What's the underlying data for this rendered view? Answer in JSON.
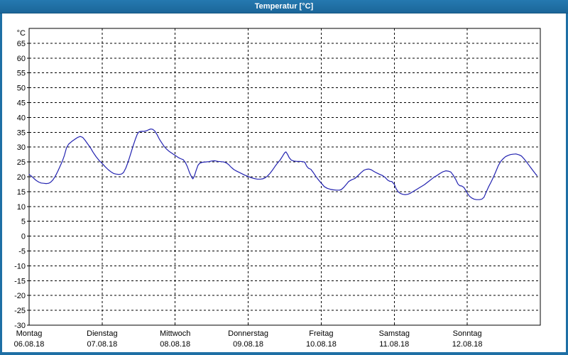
{
  "window": {
    "title": "Temperatur [°C]",
    "title_bar_color": "#1e6fa5",
    "frame_color": "#1e6fa5",
    "background_color": "#ffffff"
  },
  "chart_data": {
    "type": "line",
    "title": "Temperatur [°C]",
    "ylabel": "°C",
    "ylim": [
      -30,
      70
    ],
    "y_tick_step": 5,
    "y_ticks": [
      65,
      60,
      55,
      50,
      45,
      40,
      35,
      30,
      25,
      20,
      15,
      10,
      5,
      0,
      -5,
      -10,
      -15,
      -20,
      -25,
      -30
    ],
    "x_range_hours": [
      0,
      168
    ],
    "x_days": [
      {
        "name": "Montag",
        "date": "06.08.18"
      },
      {
        "name": "Dienstag",
        "date": "07.08.18"
      },
      {
        "name": "Mittwoch",
        "date": "08.08.18"
      },
      {
        "name": "Donnerstag",
        "date": "09.08.18"
      },
      {
        "name": "Freitag",
        "date": "10.08.18"
      },
      {
        "name": "Samstag",
        "date": "11.08.18"
      },
      {
        "name": "Sonntag",
        "date": "12.08.18"
      }
    ],
    "grid": "dashed",
    "legend": "none",
    "axis_color": "#000000",
    "series": [
      {
        "name": "Temperatur",
        "color": "#2222b0",
        "points": [
          [
            0,
            20.8
          ],
          [
            0.8,
            20.2
          ],
          [
            1.6,
            19.4
          ],
          [
            2.4,
            18.7
          ],
          [
            3.2,
            18.2
          ],
          [
            4,
            17.9
          ],
          [
            4.8,
            17.8
          ],
          [
            5.6,
            17.7
          ],
          [
            6.4,
            17.8
          ],
          [
            7,
            18.1
          ],
          [
            7.8,
            18.9
          ],
          [
            8.6,
            20.2
          ],
          [
            9.4,
            21.8
          ],
          [
            10.2,
            23.6
          ],
          [
            10.9,
            25.2
          ],
          [
            11.6,
            27.2
          ],
          [
            12.3,
            29.8
          ],
          [
            13,
            31
          ],
          [
            14,
            31.9
          ],
          [
            15,
            32.6
          ],
          [
            16,
            33.3
          ],
          [
            16.8,
            33.6
          ],
          [
            17.6,
            33.3
          ],
          [
            18.4,
            32.3
          ],
          [
            19.3,
            31
          ],
          [
            20.1,
            29.9
          ],
          [
            21,
            28.3
          ],
          [
            22,
            26.8
          ],
          [
            23,
            25.5
          ],
          [
            24,
            24.5
          ],
          [
            25,
            23.4
          ],
          [
            26,
            22.4
          ],
          [
            27,
            21.6
          ],
          [
            27.8,
            21.1
          ],
          [
            28.6,
            20.9
          ],
          [
            29.5,
            20.8
          ],
          [
            30.3,
            20.9
          ],
          [
            31,
            21.4
          ],
          [
            31.8,
            23
          ],
          [
            32.6,
            25.2
          ],
          [
            33.4,
            27.8
          ],
          [
            34.2,
            30.5
          ],
          [
            35,
            32.9
          ],
          [
            35.6,
            34.5
          ],
          [
            36.2,
            35.2
          ],
          [
            37,
            35.3
          ],
          [
            37.8,
            35.3
          ],
          [
            38.6,
            35.5
          ],
          [
            39.4,
            35.9
          ],
          [
            40,
            36.1
          ],
          [
            40.6,
            36
          ],
          [
            41.3,
            35.4
          ],
          [
            42,
            34.3
          ],
          [
            42.8,
            32.7
          ],
          [
            43.6,
            31.4
          ],
          [
            44.4,
            30.2
          ],
          [
            45.2,
            29.3
          ],
          [
            46,
            28.6
          ],
          [
            47,
            27.9
          ],
          [
            48,
            27.2
          ],
          [
            49,
            26.5
          ],
          [
            49.8,
            26.1
          ],
          [
            50.6,
            25.8
          ],
          [
            51.3,
            24.9
          ],
          [
            52,
            23.4
          ],
          [
            52.7,
            21.4
          ],
          [
            53.4,
            19.9
          ],
          [
            53.8,
            19.3
          ],
          [
            54.3,
            20.2
          ],
          [
            54.9,
            22.2
          ],
          [
            55.5,
            23.9
          ],
          [
            56.1,
            24.6
          ],
          [
            57,
            24.9
          ],
          [
            58,
            25
          ],
          [
            59,
            25.1
          ],
          [
            60,
            25.3
          ],
          [
            61,
            25.4
          ],
          [
            62,
            25.2
          ],
          [
            63,
            25.1
          ],
          [
            64,
            25
          ],
          [
            64.8,
            24.7
          ],
          [
            65.6,
            24.1
          ],
          [
            66.4,
            23.2
          ],
          [
            67.2,
            22.5
          ],
          [
            68,
            22
          ],
          [
            69,
            21.5
          ],
          [
            70,
            21
          ],
          [
            71,
            20.5
          ],
          [
            72,
            20.1
          ],
          [
            73,
            19.7
          ],
          [
            74,
            19.4
          ],
          [
            75,
            19.2
          ],
          [
            76,
            19.2
          ],
          [
            76.8,
            19.3
          ],
          [
            77.6,
            19.7
          ],
          [
            78.4,
            20.3
          ],
          [
            79.2,
            21.2
          ],
          [
            80,
            22.3
          ],
          [
            80.8,
            23.5
          ],
          [
            81.6,
            24.6
          ],
          [
            82.4,
            25.5
          ],
          [
            83.2,
            26.8
          ],
          [
            84,
            28.1
          ],
          [
            84.4,
            28.4
          ],
          [
            84.9,
            27.6
          ],
          [
            85.5,
            26.4
          ],
          [
            86.2,
            25.6
          ],
          [
            87,
            25.3
          ],
          [
            88,
            25.2
          ],
          [
            89,
            25.2
          ],
          [
            90,
            25.1
          ],
          [
            90.6,
            24.9
          ],
          [
            91.2,
            23.6
          ],
          [
            91.8,
            22.9
          ],
          [
            92.6,
            22.5
          ],
          [
            93.4,
            21.4
          ],
          [
            94.2,
            20.2
          ],
          [
            95,
            19.1
          ],
          [
            96,
            17.9
          ],
          [
            97,
            16.7
          ],
          [
            98,
            16.1
          ],
          [
            99,
            15.8
          ],
          [
            100,
            15.6
          ],
          [
            101,
            15.5
          ],
          [
            102,
            15.5
          ],
          [
            102.6,
            15.7
          ],
          [
            103.4,
            16.4
          ],
          [
            104.2,
            17.4
          ],
          [
            105,
            18.4
          ],
          [
            106,
            19
          ],
          [
            107,
            19.4
          ],
          [
            108,
            20.3
          ],
          [
            109,
            21.3
          ],
          [
            110,
            22.2
          ],
          [
            110.8,
            22.5
          ],
          [
            111.6,
            22.6
          ],
          [
            112.4,
            22.4
          ],
          [
            113.2,
            21.9
          ],
          [
            114,
            21.4
          ],
          [
            115,
            20.9
          ],
          [
            116,
            20.5
          ],
          [
            117,
            19.8
          ],
          [
            117.8,
            18.9
          ],
          [
            118.5,
            18.5
          ],
          [
            119.2,
            18.4
          ],
          [
            120,
            17.5
          ],
          [
            120.6,
            16
          ],
          [
            121.3,
            14.9
          ],
          [
            122,
            14.4
          ],
          [
            122.8,
            14.1
          ],
          [
            123.6,
            14
          ],
          [
            124.4,
            14.1
          ],
          [
            125.2,
            14.4
          ],
          [
            126,
            14.9
          ],
          [
            126.8,
            15.4
          ],
          [
            127.6,
            15.9
          ],
          [
            128.4,
            16.4
          ],
          [
            129.2,
            16.9
          ],
          [
            130,
            17.4
          ],
          [
            131,
            18.2
          ],
          [
            132,
            19
          ],
          [
            133,
            19.8
          ],
          [
            134,
            20.4
          ],
          [
            135,
            21.1
          ],
          [
            136,
            21.7
          ],
          [
            137,
            22
          ],
          [
            137.8,
            21.9
          ],
          [
            138.6,
            21.6
          ],
          [
            139.4,
            20.5
          ],
          [
            140.2,
            19.1
          ],
          [
            140.9,
            17.6
          ],
          [
            141.5,
            17
          ],
          [
            142.2,
            16.9
          ],
          [
            142.9,
            16.4
          ],
          [
            143.5,
            15.4
          ],
          [
            144,
            14.5
          ],
          [
            144.7,
            13.5
          ],
          [
            145.4,
            12.9
          ],
          [
            146.2,
            12.5
          ],
          [
            147,
            12.3
          ],
          [
            148,
            12.3
          ],
          [
            148.8,
            12.5
          ],
          [
            149.5,
            13.1
          ],
          [
            150.2,
            14.8
          ],
          [
            151,
            16.6
          ],
          [
            151.8,
            18.2
          ],
          [
            152.6,
            19.9
          ],
          [
            153.4,
            21.8
          ],
          [
            154.2,
            23.8
          ],
          [
            155,
            25.2
          ],
          [
            155.8,
            26.1
          ],
          [
            156.6,
            26.8
          ],
          [
            157.4,
            27.2
          ],
          [
            158.2,
            27.5
          ],
          [
            159,
            27.6
          ],
          [
            160,
            27.7
          ],
          [
            161,
            27.4
          ],
          [
            161.8,
            27
          ],
          [
            162.6,
            26.1
          ],
          [
            163.4,
            25.1
          ],
          [
            164.2,
            24
          ],
          [
            165,
            22.9
          ],
          [
            165.8,
            21.8
          ],
          [
            166.4,
            21
          ],
          [
            166.9,
            20.4
          ]
        ]
      }
    ]
  }
}
